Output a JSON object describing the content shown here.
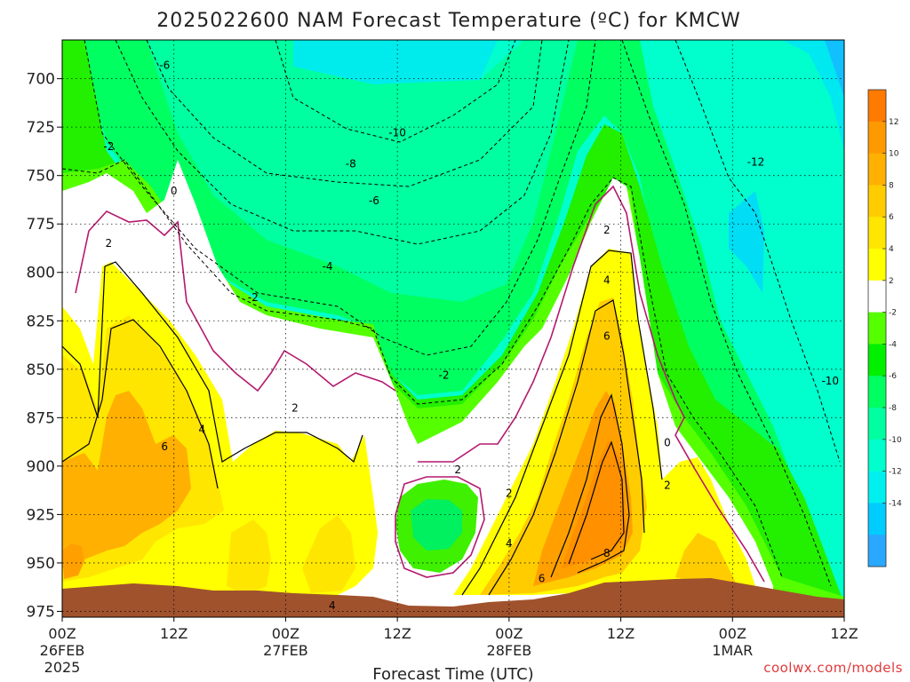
{
  "chart_data": {
    "type": "heatmap",
    "title": "2025022600 NAM Forecast Temperature (ºC) for KMCW",
    "xlabel": "Forecast Time (UTC)",
    "ylabel": "",
    "y_ticks": [
      "700",
      "725",
      "750",
      "775",
      "800",
      "825",
      "850",
      "875",
      "900",
      "925",
      "950",
      "975"
    ],
    "y_values": [
      700,
      725,
      750,
      775,
      800,
      825,
      850,
      875,
      900,
      925,
      950,
      975
    ],
    "ylim": [
      680,
      978
    ],
    "y_inverted": true,
    "x_ticks": [
      {
        "hour": 0,
        "lines": [
          "00Z",
          "26FEB",
          "2025"
        ]
      },
      {
        "hour": 12,
        "lines": [
          "12Z"
        ]
      },
      {
        "hour": 24,
        "lines": [
          "00Z",
          "27FEB"
        ]
      },
      {
        "hour": 36,
        "lines": [
          "12Z"
        ]
      },
      {
        "hour": 48,
        "lines": [
          "00Z",
          "28FEB"
        ]
      },
      {
        "hour": 60,
        "lines": [
          "12Z"
        ]
      },
      {
        "hour": 72,
        "lines": [
          "00Z",
          "1MAR"
        ]
      },
      {
        "hour": 84,
        "lines": [
          "12Z"
        ]
      }
    ],
    "xlim": [
      0,
      84
    ],
    "grid": true,
    "colorbar": {
      "ticks": [
        "12",
        "10",
        "8",
        "6",
        "4",
        "2",
        "-2",
        "-4",
        "-6",
        "-8",
        "-10",
        "-12",
        "-14"
      ],
      "colors": [
        "#ff7a00",
        "#ff9900",
        "#ffb000",
        "#ffcc00",
        "#ffe600",
        "#ffff00",
        "#ffffff",
        "#55ff00",
        "#00f000",
        "#00ff60",
        "#00ffa0",
        "#00ffcc",
        "#00f0f0",
        "#00ccff",
        "#2aa8ff"
      ]
    },
    "contour_labels": [
      {
        "text": "-6",
        "hour": 11.0,
        "p": 693
      },
      {
        "text": "-2",
        "hour": 5.0,
        "p": 735
      },
      {
        "text": "-10",
        "hour": 36.0,
        "p": 728
      },
      {
        "text": "-8",
        "hour": 31.0,
        "p": 744
      },
      {
        "text": "-6",
        "hour": 33.5,
        "p": 763
      },
      {
        "text": "-4",
        "hour": 28.5,
        "p": 797
      },
      {
        "text": "-2",
        "hour": 20.5,
        "p": 813
      },
      {
        "text": "-2",
        "hour": 41.0,
        "p": 853
      },
      {
        "text": "0",
        "hour": 12.0,
        "p": 758
      },
      {
        "text": "2",
        "hour": 5.0,
        "p": 785
      },
      {
        "text": "2",
        "hour": 25.0,
        "p": 870
      },
      {
        "text": "6",
        "hour": 11.0,
        "p": 890
      },
      {
        "text": "4",
        "hour": 15.0,
        "p": 881
      },
      {
        "text": "2",
        "hour": 42.5,
        "p": 902
      },
      {
        "text": "2",
        "hour": 48.0,
        "p": 914
      },
      {
        "text": "4",
        "hour": 48.0,
        "p": 940
      },
      {
        "text": "6",
        "hour": 51.5,
        "p": 958
      },
      {
        "text": "8",
        "hour": 58.5,
        "p": 945
      },
      {
        "text": "6",
        "hour": 58.5,
        "p": 833
      },
      {
        "text": "4",
        "hour": 58.5,
        "p": 804
      },
      {
        "text": "2",
        "hour": 58.5,
        "p": 778
      },
      {
        "text": "0",
        "hour": 65.0,
        "p": 888
      },
      {
        "text": "2",
        "hour": 65.0,
        "p": 910
      },
      {
        "text": "-12",
        "hour": 74.5,
        "p": 743
      },
      {
        "text": "-10",
        "hour": 82.5,
        "p": 856
      },
      {
        "text": "4",
        "hour": 29.0,
        "p": 972
      }
    ]
  },
  "credit": "coolwx.com/models"
}
